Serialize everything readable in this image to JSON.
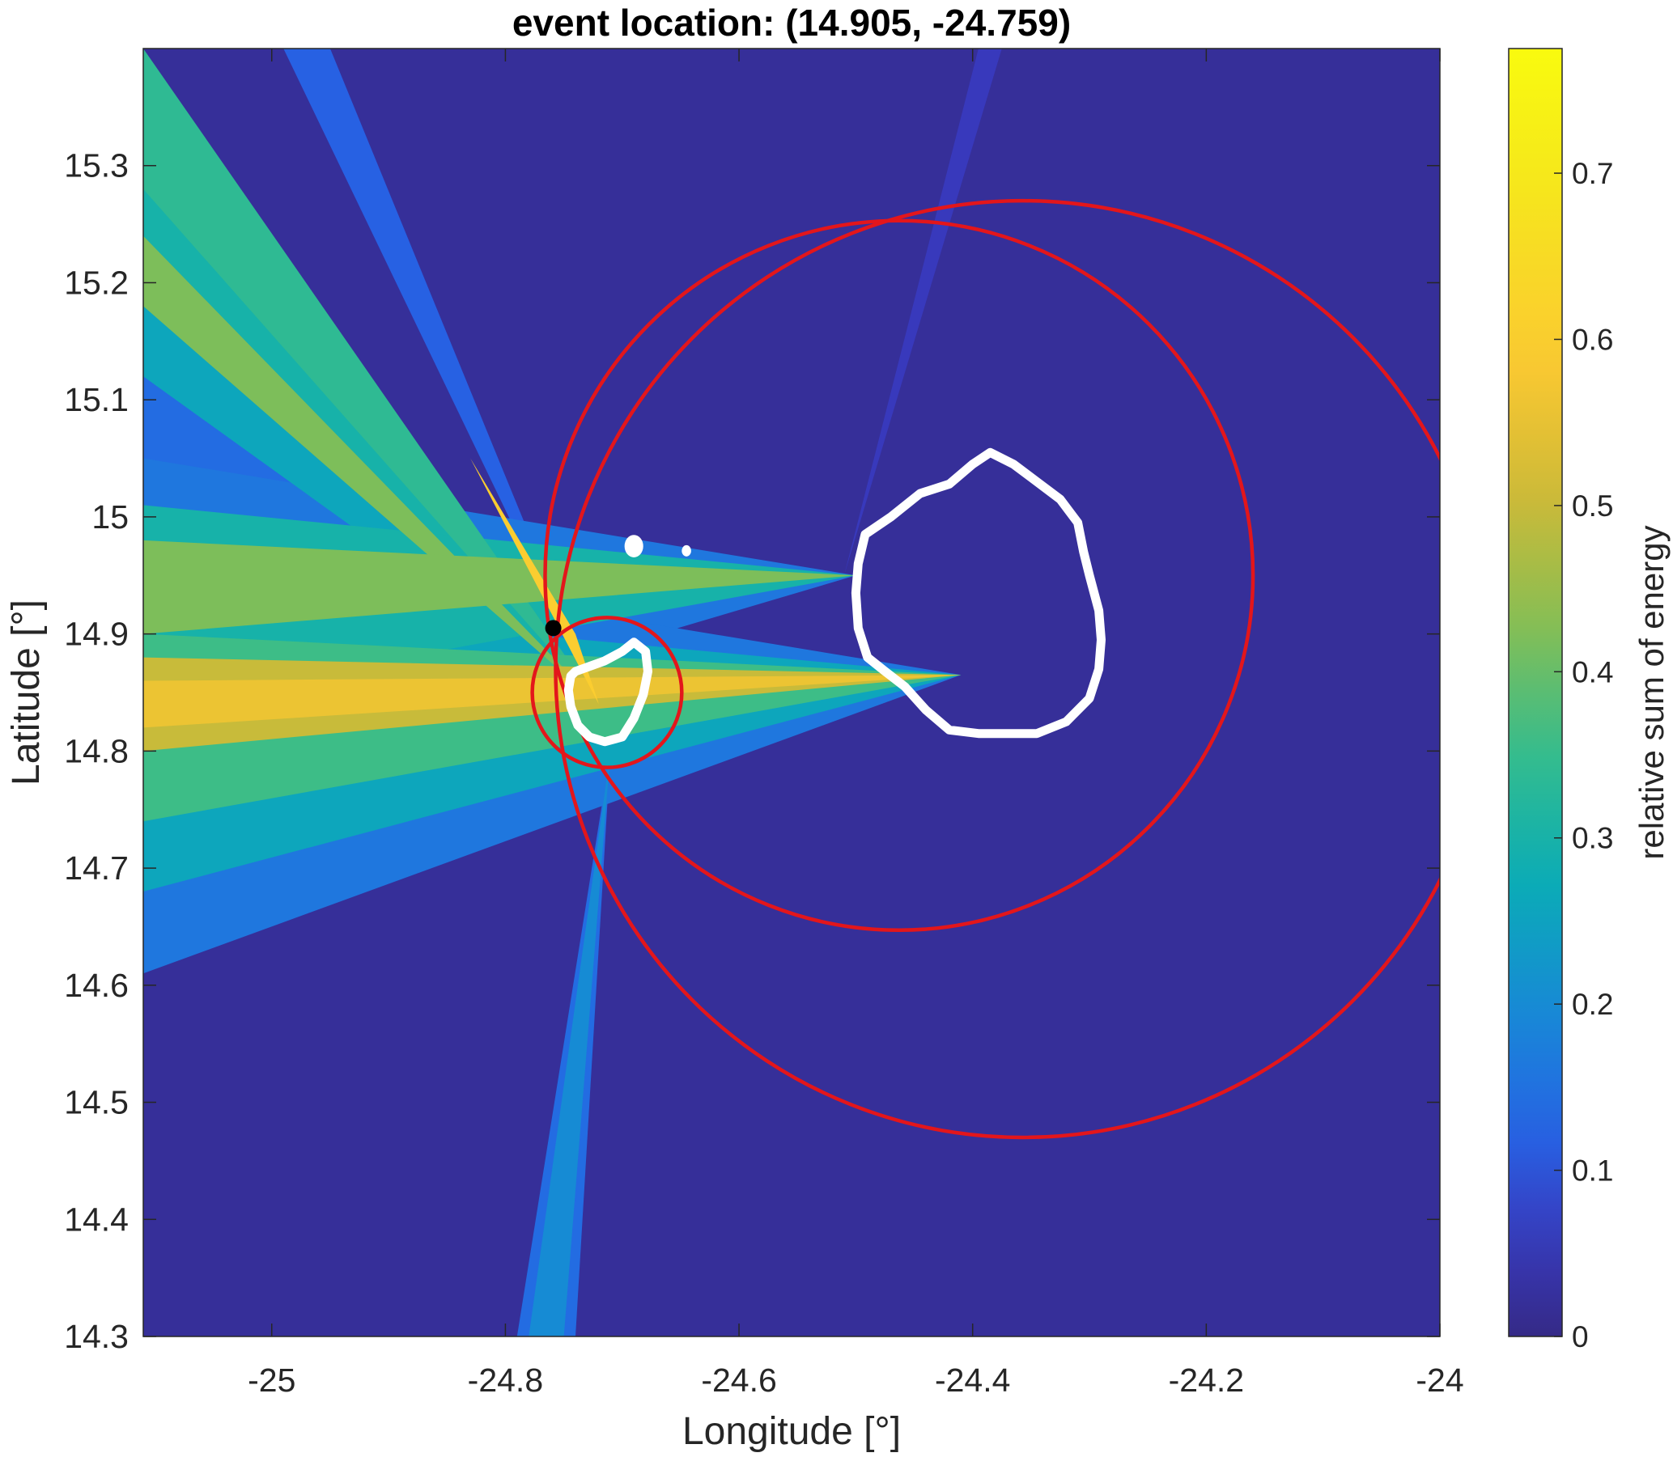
{
  "chart_data": {
    "type": "heatmap",
    "title": "event location: (14.905, -24.759)",
    "xlabel": "Longitude [°]",
    "ylabel": "Latitude [°]",
    "xlim": [
      -25.11,
      -24.0
    ],
    "ylim": [
      14.3,
      15.4
    ],
    "xticks": [
      -25,
      -24.8,
      -24.6,
      -24.4,
      -24.2,
      -24
    ],
    "xtick_labels": [
      "-25",
      "-24.8",
      "-24.6",
      "-24.4",
      "-24.2",
      "-24"
    ],
    "yticks": [
      14.3,
      14.4,
      14.5,
      14.6,
      14.7,
      14.8,
      14.9,
      15,
      15.1,
      15.2,
      15.3
    ],
    "ytick_labels": [
      "14.3",
      "14.4",
      "14.5",
      "14.6",
      "14.7",
      "14.8",
      "14.9",
      "15",
      "15.1",
      "15.2",
      "15.3"
    ],
    "colorbar": {
      "label": "relative sum of energy",
      "range": [
        0,
        0.775
      ],
      "ticks": [
        0,
        0.1,
        0.2,
        0.3,
        0.4,
        0.5,
        0.6,
        0.7
      ],
      "tick_labels": [
        "0",
        "0.1",
        "0.2",
        "0.3",
        "0.4",
        "0.5",
        "0.6",
        "0.7"
      ],
      "colormap": "parula"
    },
    "background_value": 0.02,
    "event": {
      "lat": 14.905,
      "lon": -24.759,
      "color": "#000000"
    },
    "beams": [
      {
        "origin": [
          -24.72,
          14.84
        ],
        "from": [
          -25.11,
          15.4
        ],
        "to": [
          -25.11,
          15.28
        ],
        "value": 0.34
      },
      {
        "origin": [
          -24.72,
          14.84
        ],
        "from": [
          -24.99,
          15.4
        ],
        "to": [
          -24.95,
          15.4
        ],
        "value": 0.12
      },
      {
        "origin": [
          -24.72,
          14.84
        ],
        "from": [
          -25.11,
          15.22
        ],
        "to": [
          -25.11,
          15.05
        ],
        "value": 0.14
      },
      {
        "origin": [
          -24.72,
          14.84
        ],
        "from": [
          -25.11,
          15.33
        ],
        "to": [
          -25.11,
          15.23
        ],
        "value": 0.24
      },
      {
        "origin": [
          -24.72,
          14.84
        ],
        "from": [
          -25.11,
          15.3
        ],
        "to": [
          -25.11,
          15.24
        ],
        "value": 0.3
      },
      {
        "origin": [
          -24.72,
          14.84
        ],
        "from": [
          -25.11,
          15.24
        ],
        "to": [
          -25.11,
          15.18
        ],
        "value": 0.42
      },
      {
        "origin": [
          -24.72,
          14.84
        ],
        "from": [
          -25.11,
          15.2
        ],
        "to": [
          -25.11,
          15.12
        ],
        "value": 0.26
      },
      {
        "origin": [
          -24.72,
          14.84
        ],
        "from": [
          -24.83,
          15.05
        ],
        "to": [
          -24.74,
          14.9
        ],
        "value": 0.6
      },
      {
        "origin": [
          -24.72,
          14.84
        ],
        "from": [
          -24.78,
          14.96
        ],
        "to": [
          -24.74,
          14.88
        ],
        "value": 0.75
      },
      {
        "origin": [
          -24.5,
          14.95
        ],
        "from": [
          -25.11,
          15.05
        ],
        "to": [
          -25.11,
          14.77
        ],
        "value": 0.16
      },
      {
        "origin": [
          -24.5,
          14.95
        ],
        "from": [
          -25.11,
          15.01
        ],
        "to": [
          -25.11,
          14.84
        ],
        "value": 0.3
      },
      {
        "origin": [
          -24.5,
          14.95
        ],
        "from": [
          -25.11,
          14.98
        ],
        "to": [
          -25.11,
          14.9
        ],
        "value": 0.42
      },
      {
        "origin": [
          -24.41,
          14.865
        ],
        "from": [
          -25.11,
          14.98
        ],
        "to": [
          -25.11,
          14.61
        ],
        "value": 0.16
      },
      {
        "origin": [
          -24.41,
          14.865
        ],
        "from": [
          -25.11,
          14.93
        ],
        "to": [
          -25.11,
          14.68
        ],
        "value": 0.26
      },
      {
        "origin": [
          -24.41,
          14.865
        ],
        "from": [
          -25.11,
          14.9
        ],
        "to": [
          -25.11,
          14.74
        ],
        "value": 0.36
      },
      {
        "origin": [
          -24.41,
          14.865
        ],
        "from": [
          -25.11,
          14.88
        ],
        "to": [
          -25.11,
          14.8
        ],
        "value": 0.5
      },
      {
        "origin": [
          -24.41,
          14.865
        ],
        "from": [
          -25.11,
          14.86
        ],
        "to": [
          -25.11,
          14.82
        ],
        "value": 0.56
      },
      {
        "origin": [
          -24.71,
          14.8
        ],
        "from": [
          -24.79,
          14.3
        ],
        "to": [
          -24.74,
          14.3
        ],
        "value": 0.14
      },
      {
        "origin": [
          -24.71,
          14.8
        ],
        "from": [
          -24.78,
          14.3
        ],
        "to": [
          -24.75,
          14.3
        ],
        "value": 0.2
      },
      {
        "origin": [
          -24.51,
          14.95
        ],
        "from": [
          -24.395,
          15.4
        ],
        "to": [
          -24.375,
          15.4
        ],
        "value": 0.06
      }
    ],
    "circles": [
      {
        "center": [
          -24.713,
          14.85
        ],
        "radius_deg": 0.064,
        "color": "#e3161b"
      },
      {
        "center": [
          -24.463,
          14.95
        ],
        "radius_deg": 0.303,
        "color": "#e3161b"
      },
      {
        "center": [
          -24.357,
          14.87
        ],
        "radius_deg": 0.4,
        "color": "#e3161b"
      }
    ],
    "islands": [
      {
        "name": "",
        "outline": [
          [
            -24.74,
            14.868
          ],
          [
            -24.715,
            14.877
          ],
          [
            -24.7,
            14.885
          ],
          [
            -24.69,
            14.893
          ],
          [
            -24.68,
            14.885
          ],
          [
            -24.678,
            14.868
          ],
          [
            -24.682,
            14.848
          ],
          [
            -24.69,
            14.828
          ],
          [
            -24.7,
            14.812
          ],
          [
            -24.715,
            14.808
          ],
          [
            -24.728,
            14.812
          ],
          [
            -24.738,
            14.822
          ],
          [
            -24.744,
            14.838
          ],
          [
            -24.746,
            14.852
          ],
          [
            -24.744,
            14.864
          ],
          [
            -24.74,
            14.868
          ]
        ]
      },
      {
        "name": "",
        "outline": [
          [
            -24.492,
            14.985
          ],
          [
            -24.47,
            15.0
          ],
          [
            -24.445,
            15.02
          ],
          [
            -24.42,
            15.028
          ],
          [
            -24.4,
            15.045
          ],
          [
            -24.385,
            15.055
          ],
          [
            -24.365,
            15.045
          ],
          [
            -24.345,
            15.03
          ],
          [
            -24.325,
            15.015
          ],
          [
            -24.31,
            14.995
          ],
          [
            -24.305,
            14.97
          ],
          [
            -24.3,
            14.95
          ],
          [
            -24.292,
            14.92
          ],
          [
            -24.29,
            14.895
          ],
          [
            -24.292,
            14.87
          ],
          [
            -24.3,
            14.845
          ],
          [
            -24.32,
            14.825
          ],
          [
            -24.345,
            14.815
          ],
          [
            -24.37,
            14.815
          ],
          [
            -24.395,
            14.815
          ],
          [
            -24.42,
            14.818
          ],
          [
            -24.44,
            14.835
          ],
          [
            -24.458,
            14.855
          ],
          [
            -24.475,
            14.868
          ],
          [
            -24.49,
            14.88
          ],
          [
            -24.498,
            14.905
          ],
          [
            -24.5,
            14.935
          ],
          [
            -24.498,
            14.96
          ],
          [
            -24.492,
            14.985
          ]
        ]
      }
    ],
    "islets": [
      {
        "lon": -24.69,
        "lat": 14.975,
        "size": 0.008
      },
      {
        "lon": -24.645,
        "lat": 14.971,
        "size": 0.004
      }
    ]
  }
}
